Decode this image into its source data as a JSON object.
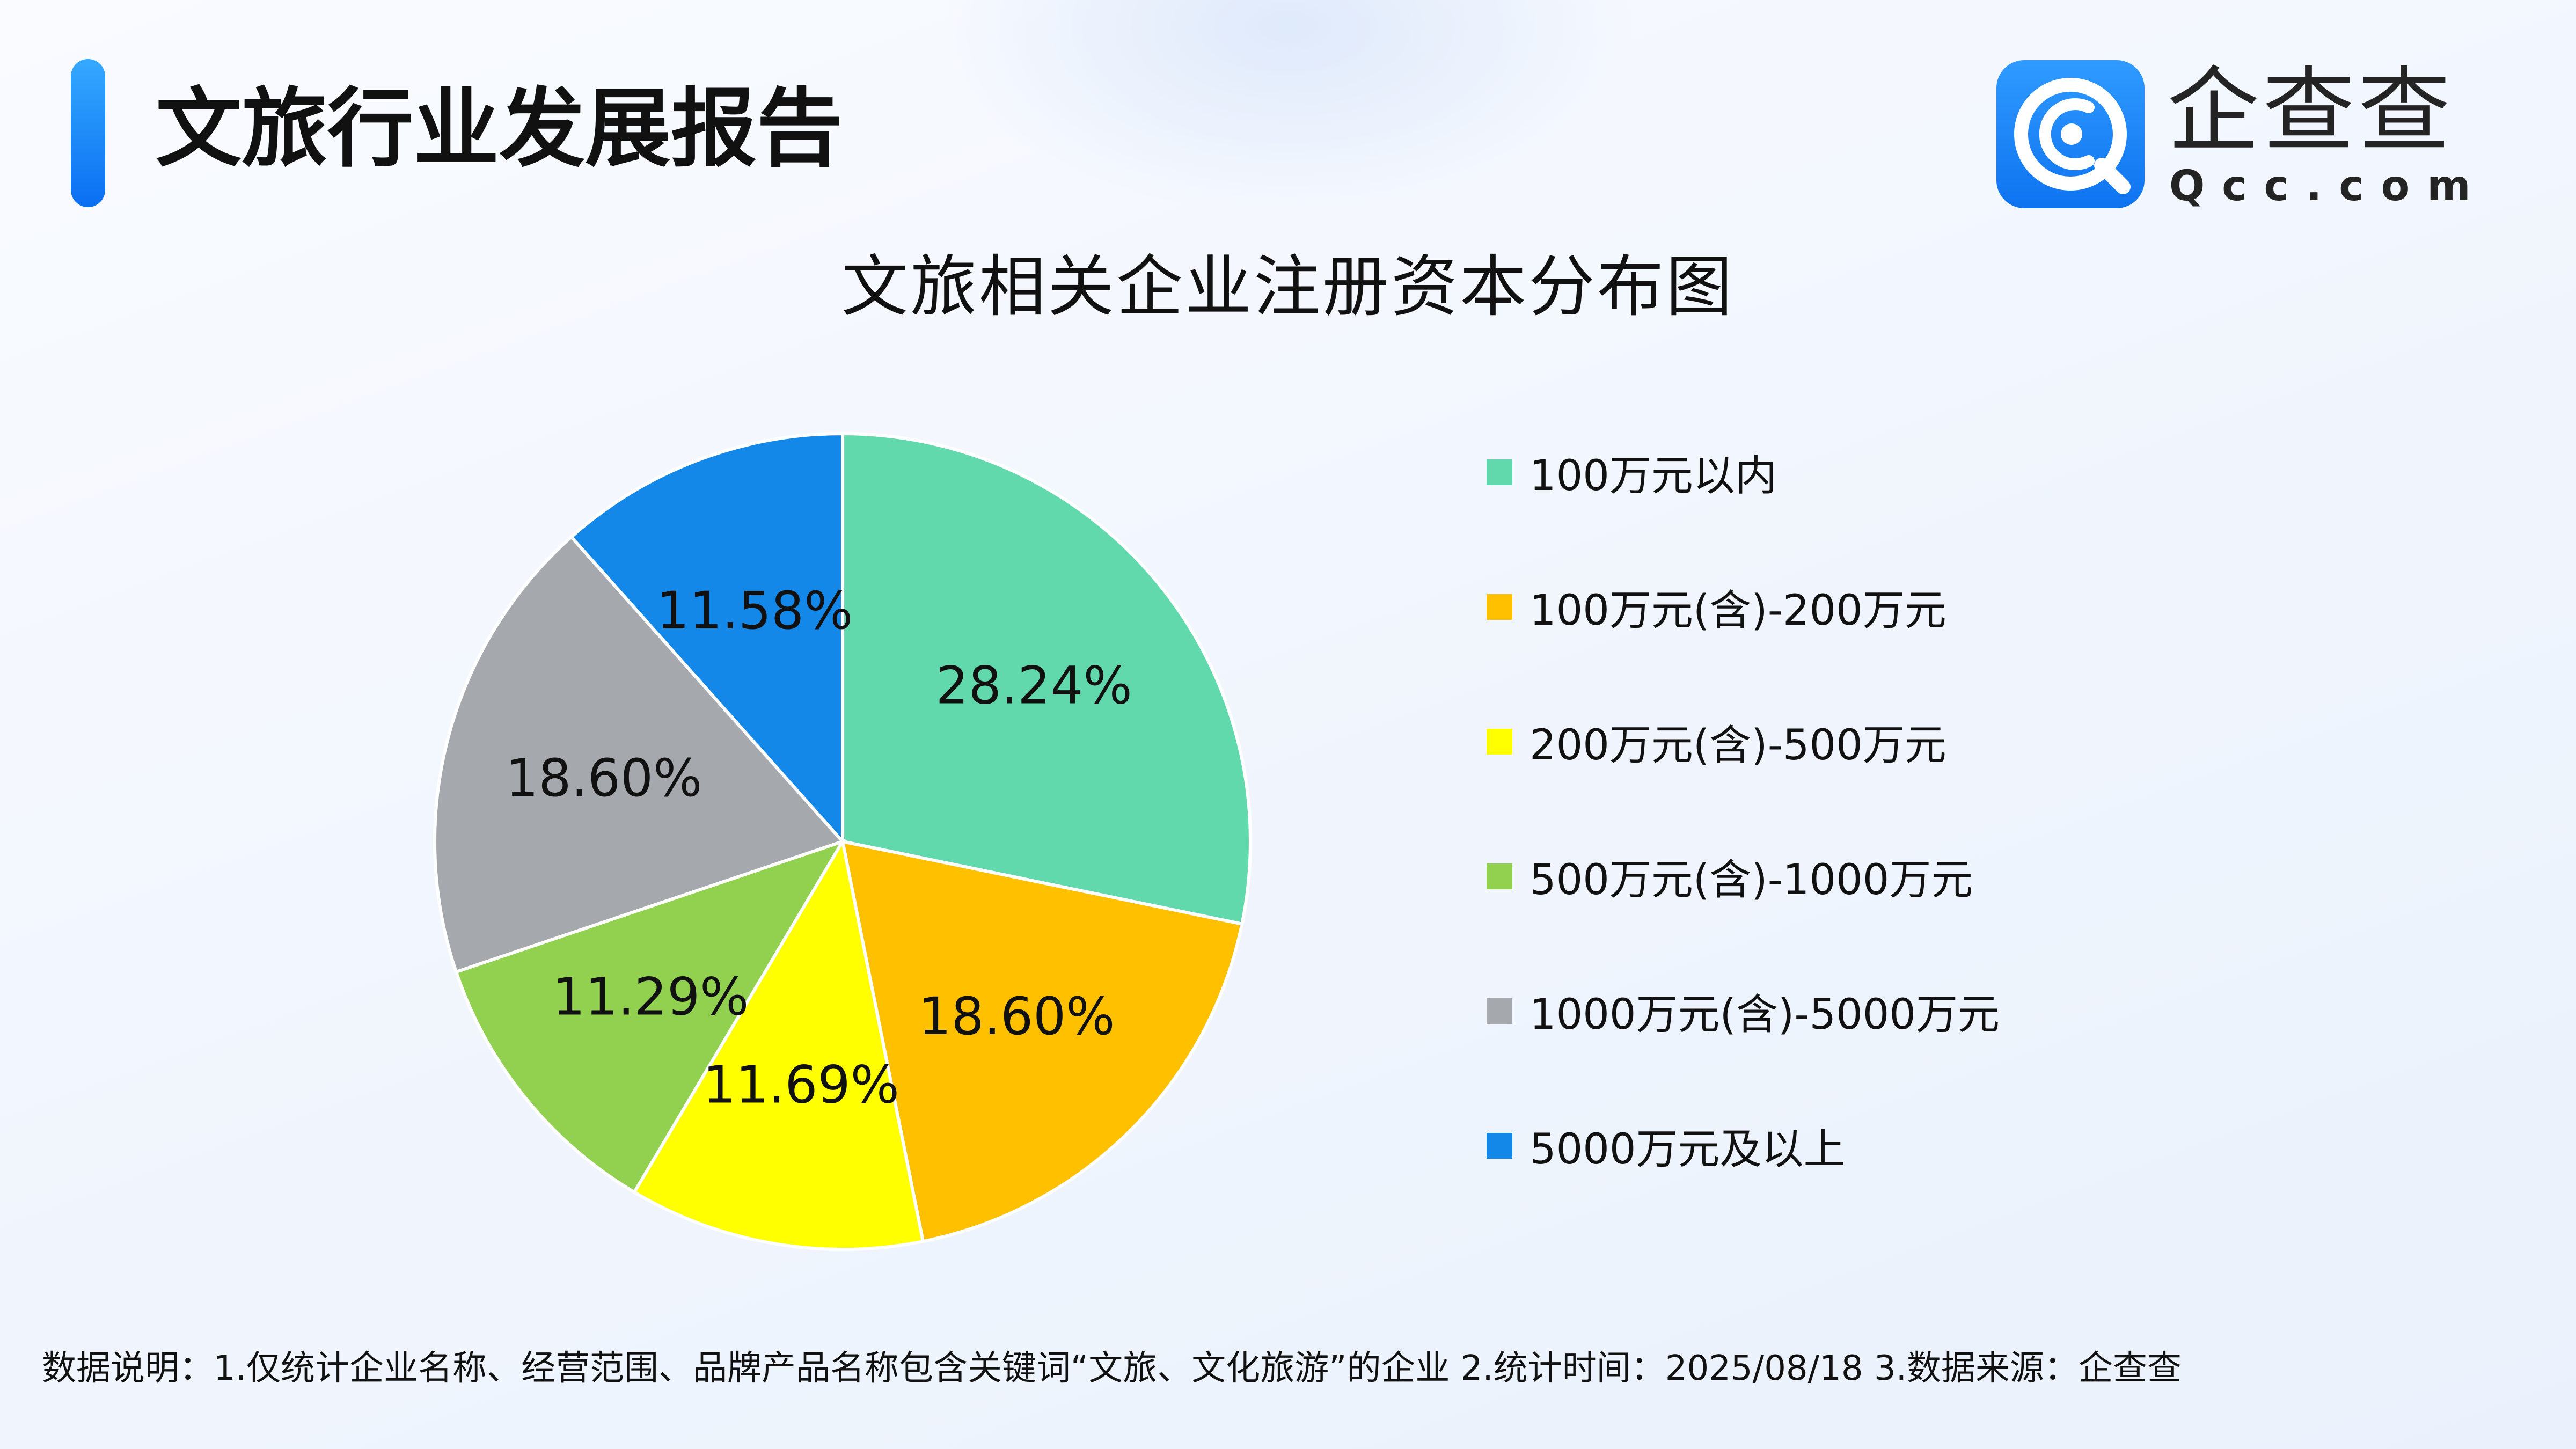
{
  "header": {
    "report_title": "文旅行业发展报告"
  },
  "brand": {
    "name": "企查查",
    "domain": "Qcc.com",
    "logo_color": "#1a7ff5"
  },
  "chart_data": {
    "type": "pie",
    "title": "文旅相关企业注册资本分布图",
    "start_angle": "12 o'clock",
    "direction": "clockwise",
    "slices": [
      {
        "label": "100万元以内",
        "value": 28.24,
        "display": "28.24%",
        "color": "#62d9ad"
      },
      {
        "label": "100万元(含)-200万元",
        "value": 18.6,
        "display": "18.60%",
        "color": "#ffc000"
      },
      {
        "label": "200万元(含)-500万元",
        "value": 11.69,
        "display": "11.69%",
        "color": "#ffff00"
      },
      {
        "label": "500万元(含)-1000万元",
        "value": 11.29,
        "display": "11.29%",
        "color": "#92d050"
      },
      {
        "label": "1000万元(含)-5000万元",
        "value": 18.6,
        "display": "18.60%",
        "color": "#a5a9ad"
      },
      {
        "label": "5000万元及以上",
        "value": 11.58,
        "display": "11.58%",
        "color": "#1488e8"
      }
    ],
    "legend_position": "right"
  },
  "footnote": {
    "text": "数据说明：1.仅统计企业名称、经营范围、品牌产品名称包含关键词“文旅、文化旅游”的企业   2.统计时间：2025/08/18    3.数据来源：企查查"
  }
}
